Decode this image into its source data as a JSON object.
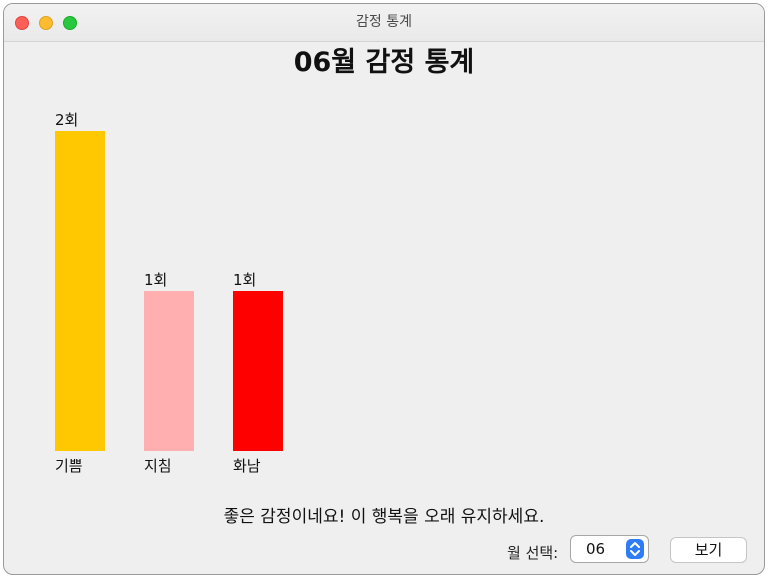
{
  "window": {
    "title": "감정 통계"
  },
  "page": {
    "title": "06월 감정 통계"
  },
  "chart_data": {
    "type": "bar",
    "title": "",
    "xlabel": "",
    "ylabel": "",
    "categories": [
      "기쁨",
      "지침",
      "화남"
    ],
    "values": [
      2,
      1,
      1
    ],
    "value_labels": [
      "2회",
      "1회",
      "1회"
    ],
    "colors": [
      "#ffc800",
      "#ffafaf",
      "#ff0000"
    ],
    "ylim": [
      0,
      2
    ],
    "grid": false,
    "legend": "none"
  },
  "message": "좋은 감정이네요! 이 행복을 오래 유지하세요.",
  "controls": {
    "month_label": "월 선택:",
    "month_value": "06",
    "view_button": "보기"
  },
  "icons": {
    "close": "close-icon",
    "minimize": "minimize-icon",
    "zoom": "zoom-icon",
    "stepper": "chevron-up-down-icon"
  }
}
